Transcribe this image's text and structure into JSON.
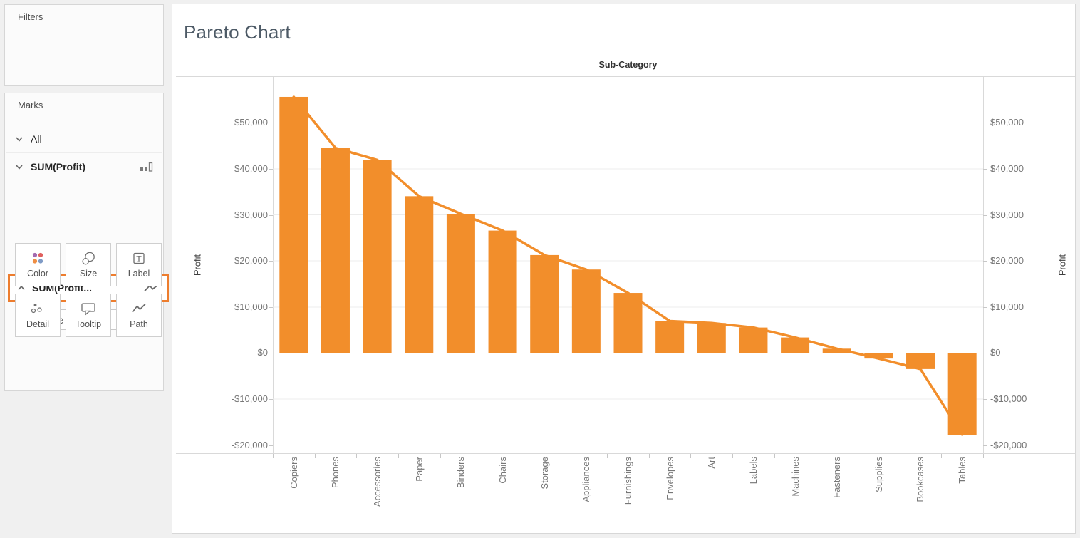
{
  "sidebar": {
    "filters_panel": {
      "title": "Filters"
    },
    "marks_panel": {
      "title": "Marks",
      "rows": [
        {
          "label": "All"
        },
        {
          "label": "SUM(Profit)"
        },
        {
          "label": "SUM(Profit..."
        }
      ],
      "mark_type_dropdown": {
        "value": "Line"
      },
      "buttons": [
        {
          "label": "Color"
        },
        {
          "label": "Size"
        },
        {
          "label": "Label"
        },
        {
          "label": "Detail"
        },
        {
          "label": "Tooltip"
        },
        {
          "label": "Path"
        }
      ],
      "highlight_color": "#ED7D2E",
      "color_icon_dots": [
        "#A36BB0",
        "#E0605E",
        "#EF8E44",
        "#7F9BC6"
      ]
    }
  },
  "chart": {
    "title": "Pareto Chart",
    "column_header": "Sub-Category",
    "left_axis_title": "Profit",
    "right_axis_title": "Profit"
  },
  "chart_data": {
    "type": "bar",
    "title": "Pareto Chart",
    "column_header": "Sub-Category",
    "categories": [
      "Copiers",
      "Phones",
      "Accessories",
      "Paper",
      "Binders",
      "Chairs",
      "Storage",
      "Appliances",
      "Furnishings",
      "Envelopes",
      "Art",
      "Labels",
      "Machines",
      "Fasteners",
      "Supplies",
      "Bookcases",
      "Tables"
    ],
    "series": [
      {
        "name": "SUM(Profit) bars",
        "type": "bar",
        "values": [
          55618,
          44516,
          41937,
          34054,
          30222,
          26590,
          21279,
          18138,
          13059,
          6964,
          6528,
          5546,
          3385,
          950,
          -1189,
          -3473,
          -17725
        ]
      },
      {
        "name": "SUM(Profit) line",
        "type": "line",
        "values": [
          55618,
          44516,
          41937,
          34054,
          30222,
          26590,
          21279,
          18138,
          13059,
          6964,
          6528,
          5546,
          3385,
          950,
          -1189,
          -3473,
          -17725
        ]
      }
    ],
    "xlabel": "Sub-Category",
    "ylabel": "Profit",
    "ylabel_right": "Profit",
    "ylim": [
      -21900,
      60100
    ],
    "yticks": [
      {
        "value": 50000,
        "label": "$50,000"
      },
      {
        "value": 40000,
        "label": "$40,000"
      },
      {
        "value": 30000,
        "label": "$30,000"
      },
      {
        "value": 20000,
        "label": "$20,000"
      },
      {
        "value": 10000,
        "label": "$10,000"
      },
      {
        "value": 0,
        "label": "$0"
      },
      {
        "value": -10000,
        "label": "-$10,000"
      },
      {
        "value": -20000,
        "label": "-$20,000"
      }
    ],
    "bar_color": "#F28E2B",
    "line_color": "#F28E2B",
    "grid": {
      "horizontal": true,
      "vertical": false,
      "zero_line": "dotted"
    },
    "legend": "none"
  }
}
